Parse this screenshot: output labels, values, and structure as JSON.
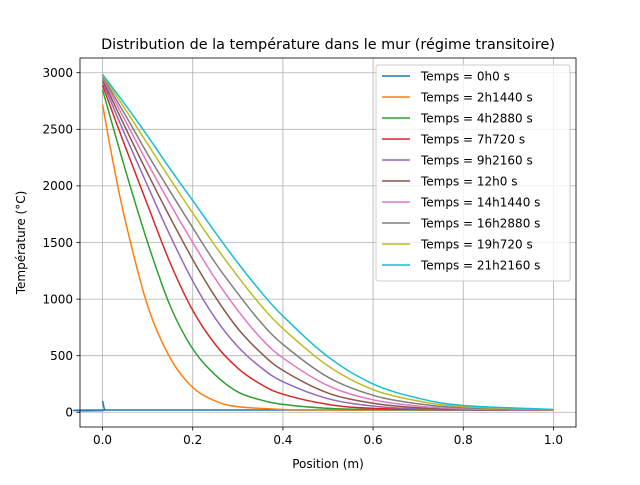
{
  "chart_data": {
    "type": "line",
    "title": "Distribution de la température dans le mur (régime transitoire)",
    "xlabel": "Position (m)",
    "ylabel": "Température (°C)",
    "xlim": [
      -0.05,
      1.05
    ],
    "ylim": [
      -130,
      3130
    ],
    "xticks": [
      {
        "value": 0.0,
        "label": "0.0"
      },
      {
        "value": 0.2,
        "label": "0.2"
      },
      {
        "value": 0.4,
        "label": "0.4"
      },
      {
        "value": 0.6,
        "label": "0.6"
      },
      {
        "value": 0.8,
        "label": "0.8"
      },
      {
        "value": 1.0,
        "label": "1.0"
      }
    ],
    "yticks": [
      {
        "value": 0,
        "label": "0"
      },
      {
        "value": 500,
        "label": "500"
      },
      {
        "value": 1000,
        "label": "1000"
      },
      {
        "value": 1500,
        "label": "1500"
      },
      {
        "value": 2000,
        "label": "2000"
      },
      {
        "value": 2500,
        "label": "2500"
      },
      {
        "value": 3000,
        "label": "3000"
      }
    ],
    "grid": true,
    "legend_position": "top-right",
    "series": [
      {
        "name": "Temps = 0h0  s",
        "color": "#1f77b4",
        "x": [
          0,
          0.005,
          0.01,
          1.0
        ],
        "y": [
          100,
          20,
          20,
          20
        ]
      },
      {
        "name": "Temps = 2h1440  s",
        "color": "#ff7f0e",
        "x": [
          0,
          0.02,
          0.05,
          0.1,
          0.15,
          0.2,
          0.25,
          0.3,
          0.4,
          0.5,
          0.6,
          0.8,
          1.0
        ],
        "y": [
          2720,
          2280,
          1700,
          940,
          480,
          220,
          100,
          50,
          25,
          21,
          20,
          20,
          20
        ]
      },
      {
        "name": "Temps = 4h2880  s",
        "color": "#2ca02c",
        "x": [
          0,
          0.05,
          0.1,
          0.15,
          0.2,
          0.25,
          0.3,
          0.35,
          0.4,
          0.5,
          0.6,
          0.8,
          1.0
        ],
        "y": [
          2850,
          2150,
          1500,
          940,
          560,
          330,
          180,
          110,
          70,
          35,
          25,
          20,
          20
        ]
      },
      {
        "name": "Temps = 7h720  s",
        "color": "#d62728",
        "x": [
          0,
          0.05,
          0.1,
          0.15,
          0.2,
          0.25,
          0.3,
          0.35,
          0.4,
          0.5,
          0.6,
          0.8,
          1.0
        ],
        "y": [
          2890,
          2350,
          1830,
          1320,
          900,
          600,
          390,
          250,
          160,
          70,
          35,
          22,
          20
        ]
      },
      {
        "name": "Temps = 9h2160  s",
        "color": "#9467bd",
        "x": [
          0,
          0.05,
          0.1,
          0.15,
          0.2,
          0.25,
          0.3,
          0.35,
          0.4,
          0.5,
          0.6,
          0.7,
          0.8,
          1.0
        ],
        "y": [
          2920,
          2450,
          2000,
          1560,
          1160,
          830,
          580,
          400,
          270,
          120,
          55,
          30,
          22,
          20
        ]
      },
      {
        "name": "Temps = 12h0  s",
        "color": "#8c564b",
        "x": [
          0,
          0.05,
          0.1,
          0.15,
          0.2,
          0.25,
          0.3,
          0.35,
          0.4,
          0.5,
          0.6,
          0.7,
          0.8,
          1.0
        ],
        "y": [
          2940,
          2520,
          2110,
          1720,
          1350,
          1020,
          740,
          530,
          370,
          170,
          80,
          40,
          25,
          20
        ]
      },
      {
        "name": "Temps = 14h1440  s",
        "color": "#e377c2",
        "x": [
          0,
          0.05,
          0.1,
          0.15,
          0.2,
          0.25,
          0.3,
          0.35,
          0.4,
          0.5,
          0.6,
          0.7,
          0.8,
          1.0
        ],
        "y": [
          2955,
          2580,
          2200,
          1840,
          1500,
          1180,
          900,
          660,
          480,
          235,
          110,
          55,
          30,
          20
        ]
      },
      {
        "name": "Temps = 16h2880  s",
        "color": "#7f7f7f",
        "x": [
          0,
          0.05,
          0.1,
          0.15,
          0.2,
          0.25,
          0.3,
          0.35,
          0.4,
          0.5,
          0.6,
          0.7,
          0.8,
          1.0
        ],
        "y": [
          2965,
          2630,
          2280,
          1950,
          1630,
          1320,
          1050,
          800,
          600,
          310,
          150,
          75,
          40,
          20
        ]
      },
      {
        "name": "Temps = 19h720  s",
        "color": "#bcbd22",
        "x": [
          0,
          0.05,
          0.1,
          0.15,
          0.2,
          0.25,
          0.3,
          0.35,
          0.4,
          0.5,
          0.6,
          0.7,
          0.8,
          1.0
        ],
        "y": [
          2975,
          2680,
          2370,
          2060,
          1760,
          1470,
          1200,
          950,
          740,
          410,
          200,
          100,
          50,
          22
        ]
      },
      {
        "name": "Temps = 21h2160  s",
        "color": "#17becf",
        "x": [
          0,
          0.05,
          0.1,
          0.15,
          0.2,
          0.25,
          0.3,
          0.35,
          0.4,
          0.5,
          0.6,
          0.7,
          0.8,
          1.0
        ],
        "y": [
          2985,
          2720,
          2440,
          2150,
          1870,
          1590,
          1320,
          1070,
          850,
          490,
          250,
          125,
          60,
          25
        ]
      }
    ]
  }
}
